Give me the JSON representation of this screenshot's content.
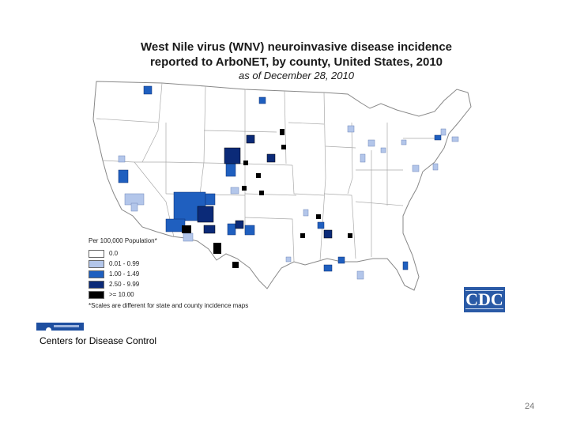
{
  "title": {
    "line1": "West Nile virus (WNV) neuroinvasive disease incidence",
    "line2": "reported to ArboNET, by county, United States, 2010",
    "line3": "as of December 28, 2010"
  },
  "legend": {
    "title": "Per 100,000 Population*",
    "items": [
      {
        "label": "0.0",
        "color": "#ffffff"
      },
      {
        "label": "0.01 - 0.99",
        "color": "#b3c6ea"
      },
      {
        "label": "1.00 - 1.49",
        "color": "#1f5fbf"
      },
      {
        "label": "2.50 - 9.99",
        "color": "#0b2a78"
      },
      {
        "label": ">= 10.00",
        "color": "#000000"
      }
    ],
    "note": "*Scales are different for state and county incidence maps"
  },
  "logo": {
    "text": "CDC"
  },
  "source": "Centers for Disease Control",
  "page_number": "24"
}
